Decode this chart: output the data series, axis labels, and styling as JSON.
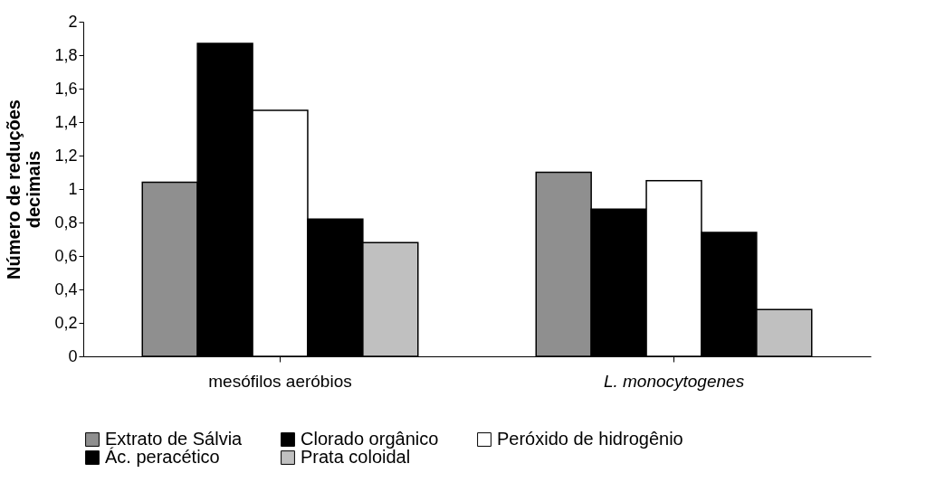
{
  "chart_data": {
    "type": "bar",
    "ylabel": "Número de reduções\ndecimais",
    "categories": [
      "mesófilos aeróbios",
      "L. monocytogenes"
    ],
    "series": [
      {
        "name": "Extrato de Sálvia",
        "color": "#8f8f8f",
        "values": [
          1.04,
          1.1
        ]
      },
      {
        "name": "Clorado orgânico",
        "color": "#000000",
        "values": [
          1.87,
          0.88
        ]
      },
      {
        "name": "Peróxido de hidrogênio",
        "color": "#ffffff",
        "values": [
          1.47,
          1.05
        ]
      },
      {
        "name": "Ác. peracético",
        "color": "#000000",
        "values": [
          0.82,
          0.74
        ]
      },
      {
        "name": "Prata coloidal",
        "color": "#c0c0c0",
        "values": [
          0.68,
          0.28
        ]
      }
    ],
    "ylim": [
      0,
      2
    ],
    "yticks": [
      0,
      {
        "value": 0.2,
        "label": "0,2"
      },
      {
        "value": 0.4,
        "label": "0,4"
      },
      {
        "value": 0.6,
        "label": "0,6"
      },
      {
        "value": 0.8,
        "label": "0,8"
      },
      1,
      {
        "value": 1.2,
        "label": "1,2"
      },
      {
        "value": 1.4,
        "label": "1,4"
      },
      {
        "value": 1.6,
        "label": "1,6"
      },
      {
        "value": 1.8,
        "label": "1,8"
      },
      2
    ],
    "grid": false,
    "legend": "bottom"
  }
}
